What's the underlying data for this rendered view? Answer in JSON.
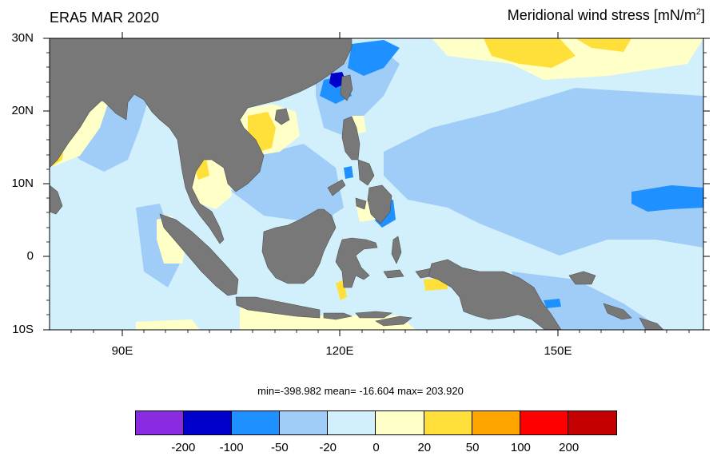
{
  "title_left": "ERA5 MAR 2020",
  "title_right": {
    "text": "Meridional wind stress [mN/m",
    "sup": "2",
    "close": "]"
  },
  "lat_labels": [
    "30N",
    "20N",
    "10N",
    "0",
    "10S"
  ],
  "lon_labels": [
    "90E",
    "120E",
    "150E"
  ],
  "stats": {
    "text": "min=-398.982  mean= -16.604  max= 203.920"
  },
  "colorbar": {
    "colors": [
      "#8a2be2",
      "#0000cd",
      "#1e90ff",
      "#a0cdf8",
      "#d2f0fb",
      "#ffffc8",
      "#ffe03a",
      "#ffa500",
      "#ff0000",
      "#c40000"
    ],
    "labels": [
      "-200",
      "-100",
      "-50",
      "-20",
      "0",
      "20",
      "50",
      "100",
      "200"
    ]
  },
  "palette": {
    "land": "#787878",
    "ocean_base": "#d2f0fb",
    "weak_neg": "#a0cdf8",
    "pos_weak": "#ffffc8",
    "pos_mid": "#ffe03a"
  }
}
